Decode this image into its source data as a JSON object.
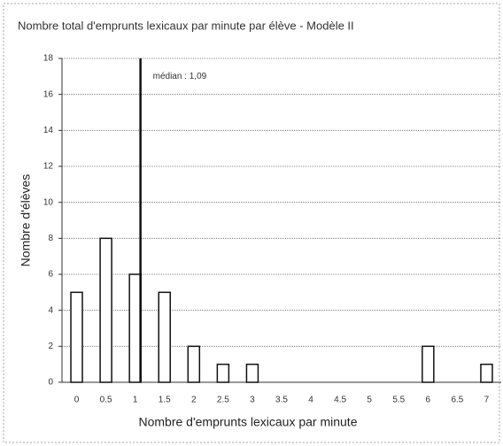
{
  "chart_data": {
    "type": "bar",
    "title": "Nombre total d'emprunts lexicaux par minute par élève - Modèle II",
    "x_label": "Nombre d'emprunts lexicaux par minute",
    "y_label": "Nombre d'élèves",
    "categories": [
      "0",
      "0.5",
      "1",
      "1.5",
      "2",
      "2.5",
      "3",
      "3.5",
      "4",
      "4.5",
      "5",
      "5.5",
      "6",
      "6.5",
      "7"
    ],
    "values": [
      5,
      8,
      6,
      5,
      2,
      1,
      1,
      0,
      0,
      0,
      0,
      0,
      2,
      0,
      1
    ],
    "color": "#ffffff",
    "ylim": [
      0,
      18
    ],
    "yticks": [
      0,
      2,
      4,
      6,
      8,
      10,
      12,
      14,
      16,
      18
    ],
    "grid": true,
    "median": 1.09,
    "annotation": "médian : 1,09"
  }
}
